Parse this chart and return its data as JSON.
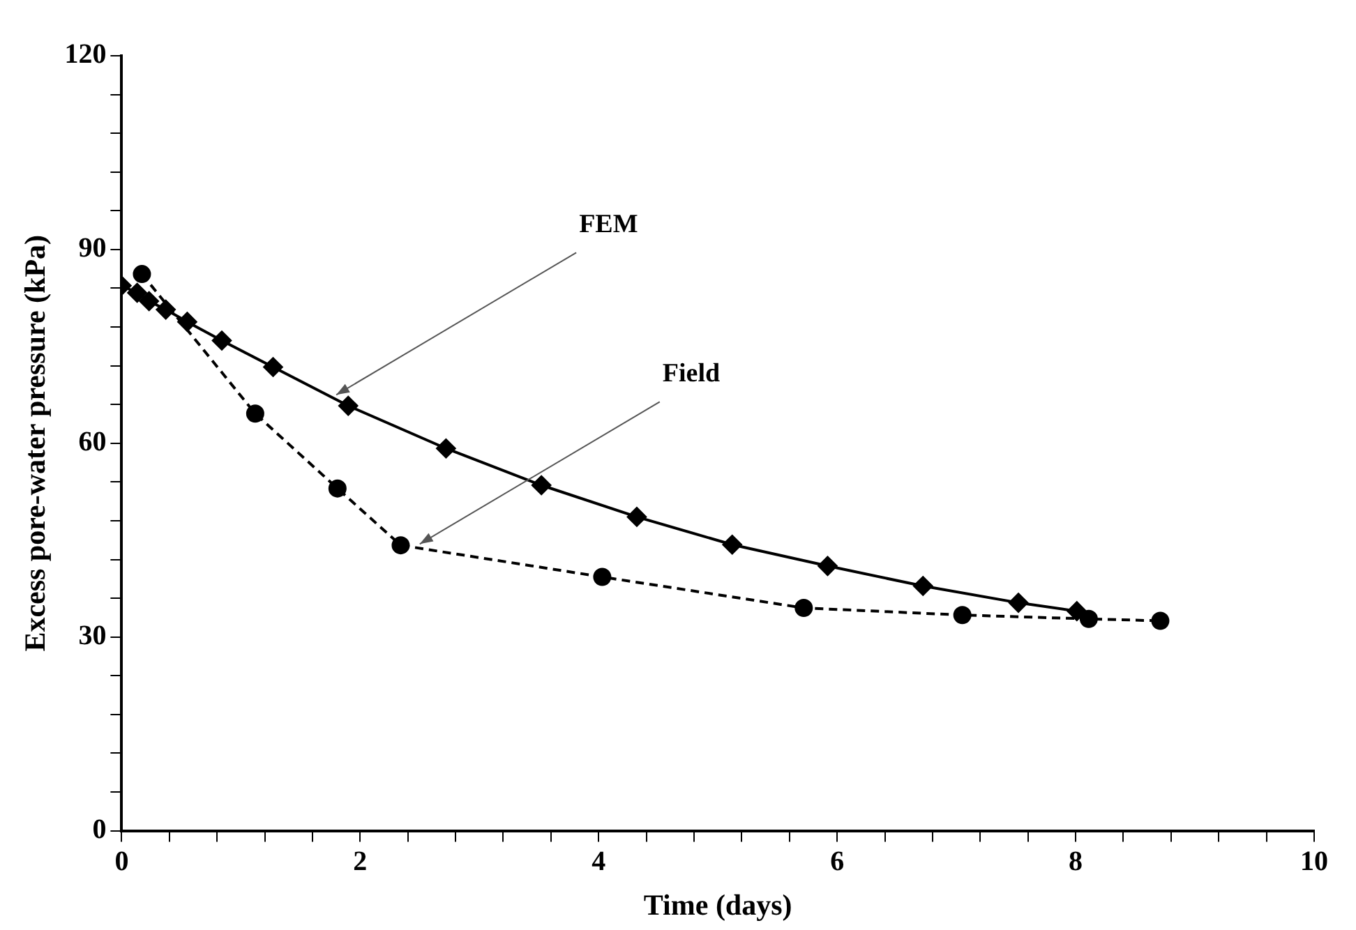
{
  "chart_data": {
    "type": "line",
    "xlabel": "Time (days)",
    "ylabel": "Excess pore-water pressure (kPa)",
    "xlim": [
      0,
      10
    ],
    "xticks": [
      0,
      {
        "value": 0.4,
        "label": null
      },
      {
        "value": 0.8,
        "label": null
      },
      {
        "value": 1.2,
        "label": null
      },
      {
        "value": 1.6,
        "label": null
      },
      2,
      {
        "value": 2.4,
        "label": null
      },
      {
        "value": 2.8,
        "label": null
      },
      {
        "value": 3.2,
        "label": null
      },
      {
        "value": 3.6,
        "label": null
      },
      4,
      {
        "value": 4.4,
        "label": null
      },
      {
        "value": 4.8,
        "label": null
      },
      {
        "value": 5.2,
        "label": null
      },
      {
        "value": 5.6,
        "label": null
      },
      6,
      {
        "value": 6.4,
        "label": null
      },
      {
        "value": 6.8,
        "label": null
      },
      {
        "value": 7.2,
        "label": null
      },
      {
        "value": 7.6,
        "label": null
      },
      8,
      {
        "value": 8.4,
        "label": null
      },
      {
        "value": 8.8,
        "label": null
      },
      {
        "value": 9.2,
        "label": null
      },
      {
        "value": 9.6,
        "label": null
      },
      10
    ],
    "ylim": [
      0,
      120
    ],
    "yticks": [
      0,
      {
        "value": 6,
        "label": null
      },
      {
        "value": 12,
        "label": null
      },
      {
        "value": 18,
        "label": null
      },
      {
        "value": 24,
        "label": null
      },
      30,
      {
        "value": 36,
        "label": null
      },
      {
        "value": 42,
        "label": null
      },
      {
        "value": 48,
        "label": null
      },
      {
        "value": 54,
        "label": null
      },
      60,
      {
        "value": 66,
        "label": null
      },
      {
        "value": 72,
        "label": null
      },
      {
        "value": 78,
        "label": null
      },
      {
        "value": 84,
        "label": null
      },
      90,
      {
        "value": 96,
        "label": null
      },
      {
        "value": 102,
        "label": null
      },
      {
        "value": 108,
        "label": null
      },
      {
        "value": 114,
        "label": null
      },
      120
    ],
    "grid": false,
    "legend": false,
    "series": [
      {
        "color": "#000000",
        "marker": "diamond",
        "line_style": "solid",
        "x": [
          0,
          0.13,
          0.23,
          0.37,
          0.55,
          0.84,
          1.27,
          1.9,
          2.72,
          3.52,
          4.32,
          5.12,
          5.92,
          6.72,
          7.52,
          8.01
        ],
        "values": [
          84.4,
          83.3,
          82.0,
          80.7,
          78.8,
          75.9,
          71.8,
          65.8,
          59.2,
          53.5,
          48.6,
          44.3,
          41.0,
          37.9,
          35.3,
          34.0
        ]
      },
      {
        "color": "#000000",
        "marker": "circle",
        "line_style": "dashed",
        "x": [
          0.17,
          1.12,
          1.81,
          2.34,
          4.03,
          5.72,
          7.05,
          8.11,
          8.71
        ],
        "values": [
          86.2,
          64.6,
          53.0,
          44.2,
          39.3,
          34.5,
          33.4,
          32.8,
          32.5
        ]
      }
    ],
    "annotations": [
      {
        "text": "FEM",
        "x": 1.8,
        "y": 67.5
      },
      {
        "text": "Field",
        "x": 2.5,
        "y": 44.4
      }
    ]
  }
}
